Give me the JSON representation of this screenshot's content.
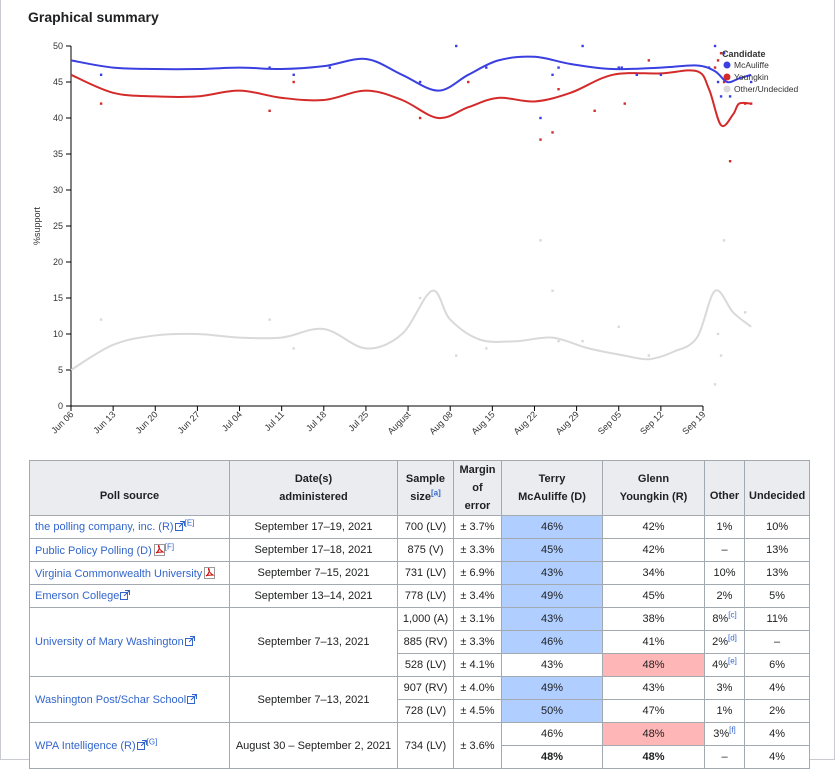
{
  "heading": "Graphical summary",
  "chart_data": {
    "type": "scatter",
    "ylabel": "%support",
    "xlabel": "",
    "ylim": [
      0,
      50
    ],
    "yticks": [
      0,
      5,
      10,
      15,
      20,
      25,
      30,
      35,
      40,
      45,
      50
    ],
    "x_ticks": [
      "Jun 06",
      "Jun 13",
      "Jun 20",
      "Jun 27",
      "Jul 04",
      "Jul 11",
      "Jul 18",
      "Jul 25",
      "August",
      "Aug 08",
      "Aug 15",
      "Aug 22",
      "Aug 29",
      "Sep 05",
      "Sep 12",
      "Sep 19"
    ],
    "grid": false,
    "legend_placement": "top-right",
    "legend_title": "Candidate",
    "series": [
      {
        "name": "McAuliffe",
        "color": "#3a3fe0",
        "points": [
          [
            5,
            46
          ],
          [
            33,
            47
          ],
          [
            37,
            46
          ],
          [
            43,
            47
          ],
          [
            58,
            45
          ],
          [
            64,
            50
          ],
          [
            69,
            47
          ],
          [
            78,
            40
          ],
          [
            80,
            46
          ],
          [
            81,
            47
          ],
          [
            85,
            50
          ],
          [
            91,
            47
          ],
          [
            91.5,
            47
          ],
          [
            94,
            46
          ],
          [
            98,
            46
          ],
          [
            106,
            47
          ],
          [
            107,
            50
          ],
          [
            107.5,
            45
          ],
          [
            108,
            43
          ],
          [
            108.5,
            49
          ],
          [
            109.5,
            43
          ],
          [
            113,
            45
          ]
        ],
        "trend": [
          [
            0,
            48
          ],
          [
            7,
            47
          ],
          [
            14,
            46.8
          ],
          [
            21,
            46.8
          ],
          [
            28,
            47
          ],
          [
            35,
            46.8
          ],
          [
            42,
            47.2
          ],
          [
            49,
            48.2
          ],
          [
            55,
            46
          ],
          [
            61,
            43.8
          ],
          [
            66,
            46
          ],
          [
            71,
            48
          ],
          [
            77,
            48.5
          ],
          [
            83,
            47.5
          ],
          [
            90,
            46.8
          ],
          [
            98,
            47
          ],
          [
            104,
            47.3
          ],
          [
            107,
            46.5
          ],
          [
            109,
            45
          ],
          [
            111,
            45.5
          ],
          [
            113,
            46
          ]
        ]
      },
      {
        "name": "Youngkin",
        "color": "#d42a2a",
        "points": [
          [
            5,
            42
          ],
          [
            33,
            41
          ],
          [
            37,
            45
          ],
          [
            58,
            40
          ],
          [
            66,
            45
          ],
          [
            78,
            37
          ],
          [
            80,
            38
          ],
          [
            81,
            44
          ],
          [
            87,
            41
          ],
          [
            92,
            42
          ],
          [
            96,
            48
          ],
          [
            107,
            47
          ],
          [
            107.5,
            48
          ],
          [
            108,
            49
          ],
          [
            108.5,
            45
          ],
          [
            109.5,
            34
          ],
          [
            112,
            42
          ],
          [
            113,
            42
          ]
        ],
        "trend": [
          [
            0,
            46
          ],
          [
            7,
            43.5
          ],
          [
            14,
            43
          ],
          [
            21,
            43
          ],
          [
            28,
            43.8
          ],
          [
            35,
            42.8
          ],
          [
            42,
            42.5
          ],
          [
            49,
            43.8
          ],
          [
            55,
            42.5
          ],
          [
            61,
            40
          ],
          [
            66,
            41.5
          ],
          [
            71,
            42.8
          ],
          [
            77,
            42.3
          ],
          [
            83,
            43.5
          ],
          [
            90,
            46
          ],
          [
            98,
            46.2
          ],
          [
            104,
            46.5
          ],
          [
            106,
            44
          ],
          [
            108,
            39
          ],
          [
            110,
            40.5
          ],
          [
            111,
            42
          ],
          [
            113,
            42
          ]
        ]
      },
      {
        "name": "Other/Undecided",
        "color": "#d9d9d9",
        "points": [
          [
            5,
            12
          ],
          [
            33,
            12
          ],
          [
            37,
            8
          ],
          [
            58,
            15
          ],
          [
            64,
            7
          ],
          [
            69,
            8
          ],
          [
            78,
            23
          ],
          [
            80,
            16
          ],
          [
            81,
            9
          ],
          [
            85,
            9
          ],
          [
            91,
            11
          ],
          [
            96,
            7
          ],
          [
            107,
            3
          ],
          [
            107.5,
            10
          ],
          [
            108,
            7
          ],
          [
            108.5,
            23
          ],
          [
            112,
            13
          ]
        ],
        "trend": [
          [
            0,
            5
          ],
          [
            7,
            8.5
          ],
          [
            14,
            9.8
          ],
          [
            21,
            10
          ],
          [
            28,
            9.5
          ],
          [
            35,
            9.5
          ],
          [
            42,
            10.7
          ],
          [
            49,
            8
          ],
          [
            55,
            10
          ],
          [
            60,
            16
          ],
          [
            63,
            12
          ],
          [
            68,
            9.2
          ],
          [
            74,
            9
          ],
          [
            80,
            9.5
          ],
          [
            86,
            8
          ],
          [
            92,
            7
          ],
          [
            96,
            6.5
          ],
          [
            100,
            7.5
          ],
          [
            104,
            9.5
          ],
          [
            107,
            16
          ],
          [
            110,
            13
          ],
          [
            113,
            11
          ]
        ]
      }
    ]
  },
  "table": {
    "headers": [
      "Poll source",
      "Date(s)",
      "administered",
      "Sample",
      "size",
      "[a]",
      "Margin",
      "of error",
      "Terry",
      "McAuliffe (D)",
      "Glenn",
      "Youngkin (R)",
      "Other",
      "Undecided"
    ],
    "rows": {
      "r1": {
        "source": "the polling company, inc. (R)",
        "note": "[E]",
        "date": "September 17–19, 2021",
        "sample": "700 (LV)",
        "margin": "± 3.7%",
        "mca": "46%",
        "you": "42%",
        "other": "1%",
        "und": "10%"
      },
      "r2": {
        "source": "Public Policy Polling (D)",
        "note": "[F]",
        "date": "September 17–18, 2021",
        "sample": "875 (V)",
        "margin": "± 3.3%",
        "mca": "45%",
        "you": "42%",
        "other": "–",
        "und": "13%"
      },
      "r3": {
        "source": "Virginia Commonwealth University",
        "date": "September 7–15, 2021",
        "sample": "731 (LV)",
        "margin": "± 6.9%",
        "mca": "43%",
        "you": "34%",
        "other": "10%",
        "und": "13%"
      },
      "r4": {
        "source": "Emerson College",
        "date": "September 13–14, 2021",
        "sample": "778 (LV)",
        "margin": "± 3.4%",
        "mca": "49%",
        "you": "45%",
        "other": "2%",
        "und": "5%"
      },
      "r5": {
        "source": "University of Mary Washington",
        "date": "September 7–13, 2021",
        "sample": "1,000 (A)",
        "margin": "± 3.1%",
        "mca": "43%",
        "you": "38%",
        "other": "8%",
        "other_note": "[c]",
        "und": "11%"
      },
      "r6": {
        "sample": "885 (RV)",
        "margin": "± 3.3%",
        "mca": "46%",
        "you": "41%",
        "other": "2%",
        "other_note": "[d]",
        "und": "–"
      },
      "r7": {
        "sample": "528 (LV)",
        "margin": "± 4.1%",
        "mca": "43%",
        "you": "48%",
        "other": "4%",
        "other_note": "[e]",
        "und": "6%"
      },
      "r8": {
        "source": "Washington Post/Schar School",
        "date": "September 7–13, 2021",
        "sample": "907 (RV)",
        "margin": "± 4.0%",
        "mca": "49%",
        "you": "43%",
        "other": "3%",
        "und": "4%"
      },
      "r9": {
        "sample": "728 (LV)",
        "margin": "± 4.5%",
        "mca": "50%",
        "you": "47%",
        "other": "1%",
        "und": "2%"
      },
      "r10": {
        "source": "WPA Intelligence (R)",
        "note": "[G]",
        "date": "August 30 – September 2, 2021",
        "sample": "734 (LV)",
        "margin": "± 3.6%",
        "mca": "46%",
        "you": "48%",
        "other": "3%",
        "other_note": "[f]",
        "und": "4%"
      },
      "r11": {
        "mca": "48%",
        "you": "48%",
        "other": "–",
        "und": "4%"
      }
    }
  }
}
